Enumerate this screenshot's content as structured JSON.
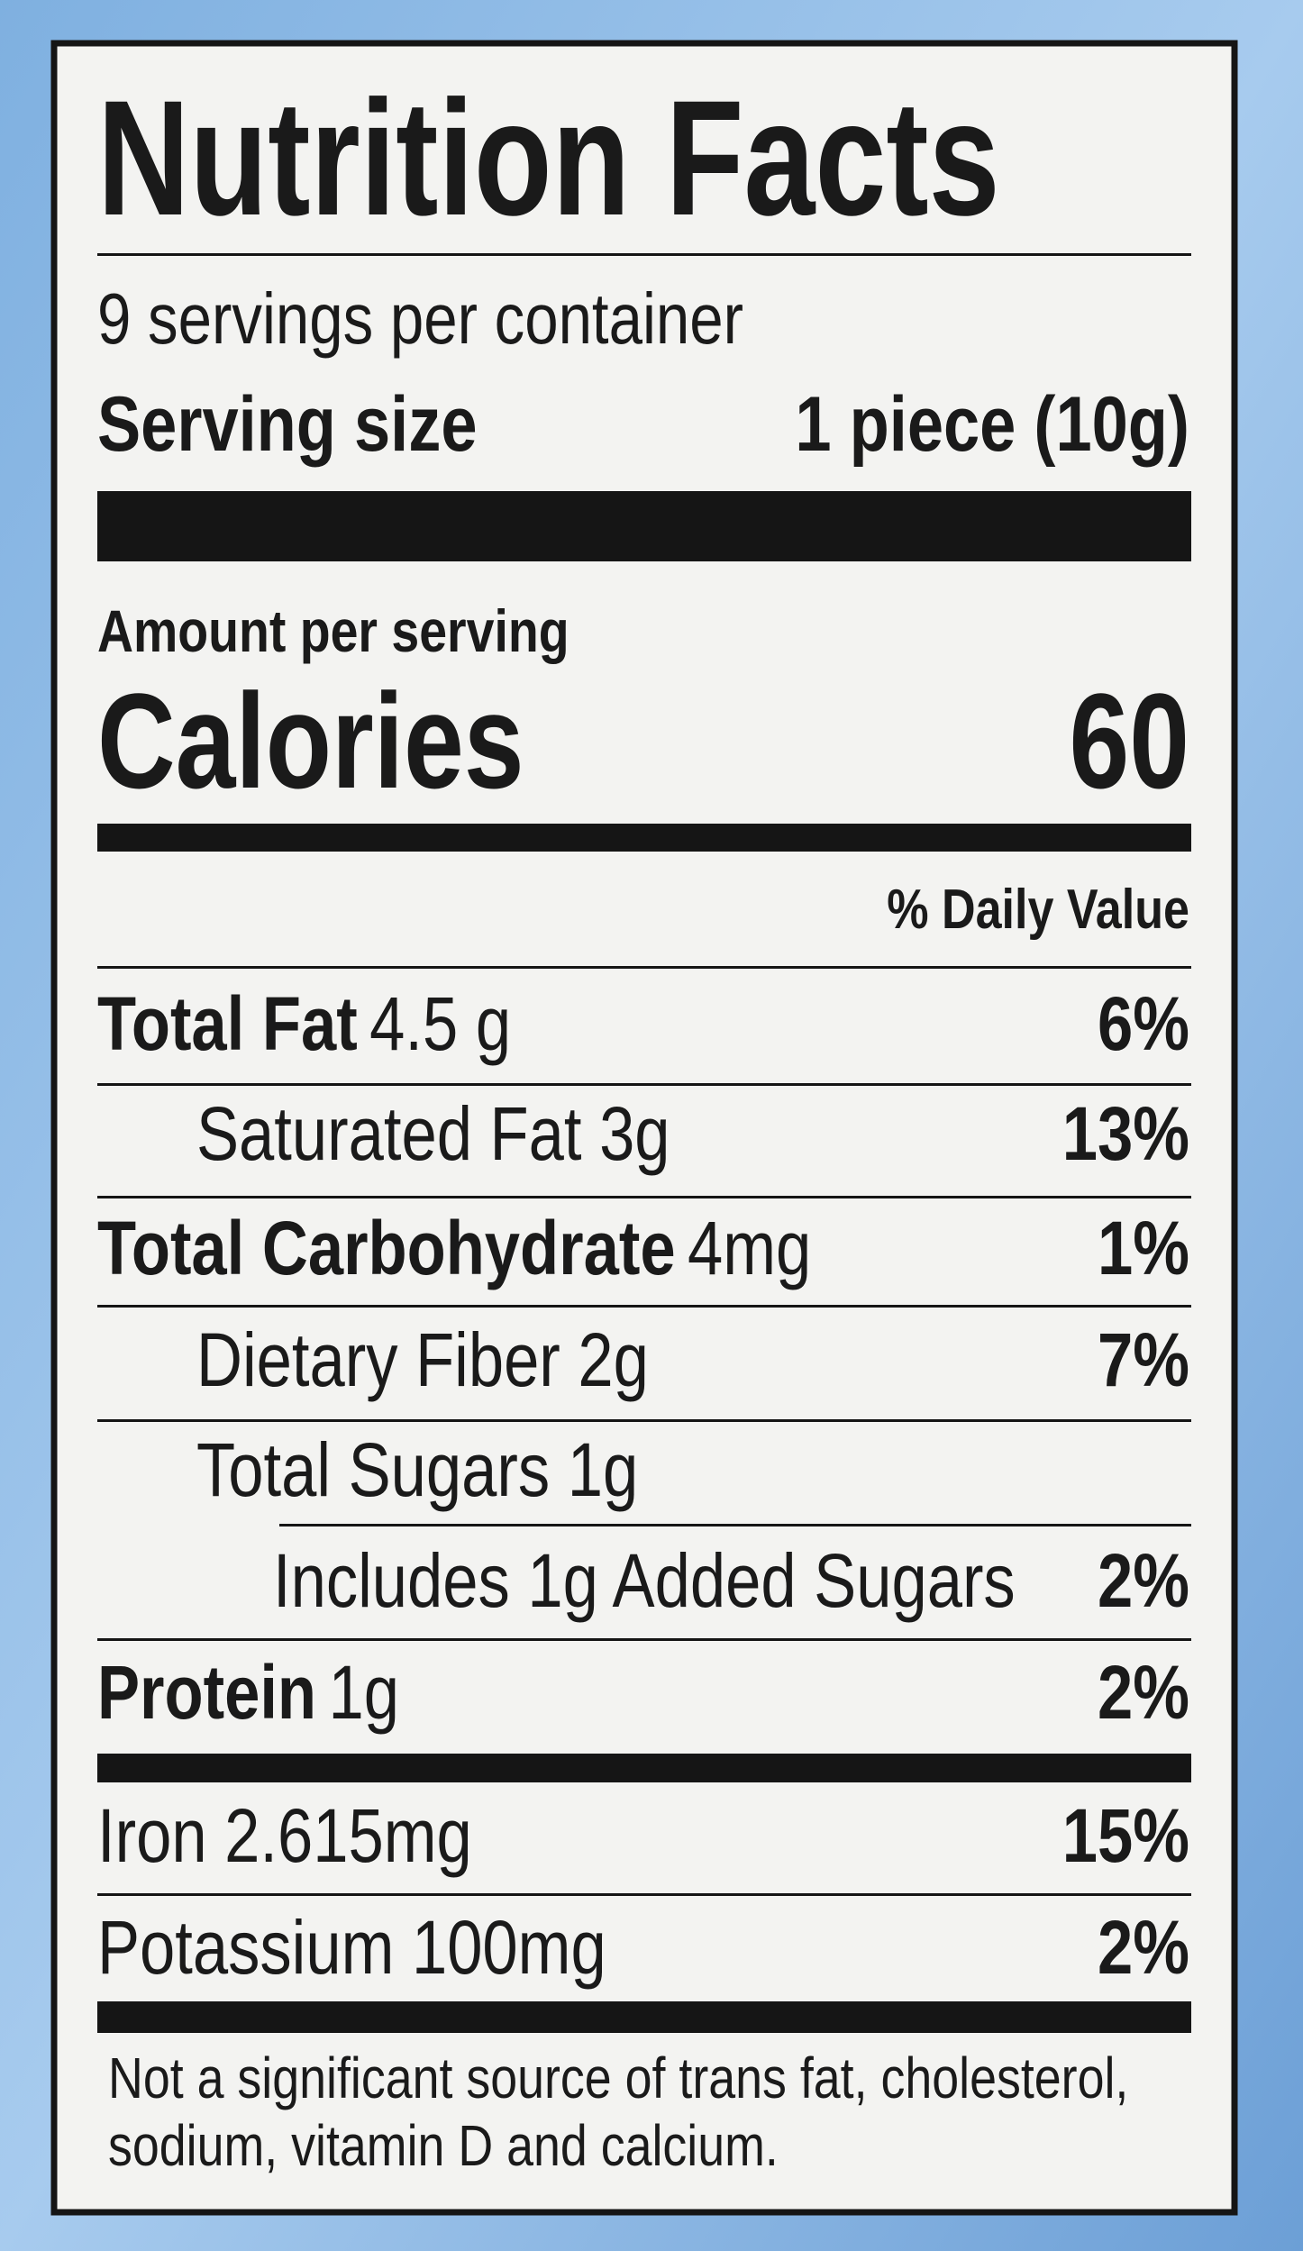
{
  "title": "Nutrition Facts",
  "servings": "9 servings per container",
  "serving_size": {
    "label": "Serving size",
    "value": "1 piece (10g)"
  },
  "amount_per_serving": "Amount per serving",
  "calories": {
    "label": "Calories",
    "value": 60
  },
  "daily_value_header": "% Daily Value",
  "nutrients": [
    {
      "name": "Total Fat",
      "amount": "4.5 g",
      "dv": "6%",
      "bold": true,
      "indent": 0
    },
    {
      "name": "Saturated Fat 3g",
      "dv": "13%",
      "bold": false,
      "indent": 1
    },
    {
      "name": "Total Carbohydrate",
      "amount": "4mg",
      "dv": "1%",
      "bold": true,
      "indent": 0
    },
    {
      "name": "Dietary Fiber 2g",
      "dv": "7%",
      "bold": false,
      "indent": 1
    },
    {
      "name": "Total Sugars 1g",
      "bold": false,
      "indent": 1
    },
    {
      "name": "Includes 1g Added Sugars",
      "dv": "2%",
      "bold": false,
      "indent": 2
    },
    {
      "name": "Protein",
      "amount": "1g",
      "dv": "2%",
      "bold": true,
      "indent": 0
    },
    {
      "name": "Iron 2.615mg",
      "dv": "15%",
      "bold": false,
      "indent": 0
    },
    {
      "name": "Potassium 100mg",
      "dv": "2%",
      "bold": false,
      "indent": 0
    }
  ],
  "footnote": [
    "Not a significant source of trans fat, cholesterol,",
    "sodium, vitamin D and calcium."
  ]
}
